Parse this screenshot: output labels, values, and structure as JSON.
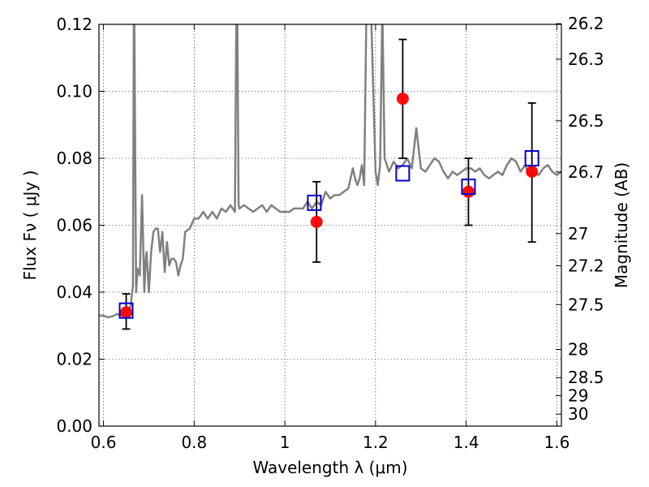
{
  "chart_data": {
    "type": "scatter",
    "title": "",
    "xlabel": "Wavelength  λ (μm)",
    "ylabel": "Flux  Fν ( μJy )",
    "y2label": "Magnitude (AB)",
    "xlim": [
      0.59,
      1.61
    ],
    "ylim": [
      0.0,
      0.12
    ],
    "grid": true,
    "x_ticks": [
      0.6,
      0.8,
      1.0,
      1.2,
      1.4,
      1.6
    ],
    "x_tick_labels": [
      "0.6",
      "0.8",
      "1",
      "1.2",
      "1.4",
      "1.6"
    ],
    "y_ticks": [
      0.0,
      0.02,
      0.04,
      0.06,
      0.08,
      0.1,
      0.12
    ],
    "y_tick_labels": [
      "0.00",
      "0.02",
      "0.04",
      "0.06",
      "0.08",
      "0.10",
      "0.12"
    ],
    "y2_ticks": [
      {
        "label": "26.2",
        "flux": 0.1202
      },
      {
        "label": "26.3",
        "flux": 0.1096
      },
      {
        "label": "26.5",
        "flux": 0.0912
      },
      {
        "label": "26.7",
        "flux": 0.0759
      },
      {
        "label": "27",
        "flux": 0.0575
      },
      {
        "label": "27.2",
        "flux": 0.0479
      },
      {
        "label": "27.5",
        "flux": 0.0363
      },
      {
        "label": "28",
        "flux": 0.0229
      },
      {
        "label": "28.5",
        "flux": 0.0145
      },
      {
        "label": "29",
        "flux": 0.0091
      },
      {
        "label": "30",
        "flux": 0.0036
      }
    ],
    "series": [
      {
        "kind": "model-spectrum",
        "color": "#808080",
        "x": [
          0.59,
          0.6,
          0.61,
          0.62,
          0.63,
          0.64,
          0.65,
          0.655,
          0.66,
          0.665,
          0.667,
          0.668,
          0.672,
          0.675,
          0.68,
          0.685,
          0.69,
          0.693,
          0.695,
          0.7,
          0.705,
          0.71,
          0.715,
          0.72,
          0.725,
          0.73,
          0.735,
          0.74,
          0.745,
          0.75,
          0.755,
          0.76,
          0.765,
          0.77,
          0.775,
          0.78,
          0.79,
          0.8,
          0.81,
          0.82,
          0.83,
          0.84,
          0.85,
          0.86,
          0.87,
          0.88,
          0.89,
          0.893,
          0.895,
          0.898,
          0.9,
          0.91,
          0.92,
          0.93,
          0.94,
          0.95,
          0.96,
          0.97,
          0.98,
          0.99,
          1.0,
          1.01,
          1.02,
          1.03,
          1.04,
          1.05,
          1.06,
          1.07,
          1.08,
          1.09,
          1.1,
          1.11,
          1.12,
          1.13,
          1.14,
          1.15,
          1.155,
          1.16,
          1.165,
          1.17,
          1.175,
          1.18,
          1.19,
          1.2,
          1.205,
          1.21,
          1.215,
          1.22,
          1.23,
          1.24,
          1.25,
          1.26,
          1.27,
          1.28,
          1.29,
          1.3,
          1.31,
          1.32,
          1.33,
          1.34,
          1.35,
          1.36,
          1.37,
          1.38,
          1.39,
          1.4,
          1.41,
          1.42,
          1.43,
          1.44,
          1.45,
          1.46,
          1.47,
          1.48,
          1.49,
          1.5,
          1.51,
          1.52,
          1.53,
          1.54,
          1.55,
          1.56,
          1.57,
          1.58,
          1.59,
          1.6,
          1.61
        ],
        "y": [
          0.033,
          0.033,
          0.0325,
          0.0328,
          0.0335,
          0.033,
          0.035,
          0.034,
          0.036,
          0.042,
          0.125,
          0.122,
          0.04,
          0.047,
          0.045,
          0.069,
          0.04,
          0.05,
          0.052,
          0.04,
          0.052,
          0.058,
          0.059,
          0.059,
          0.052,
          0.058,
          0.046,
          0.055,
          0.048,
          0.05,
          0.05,
          0.049,
          0.045,
          0.048,
          0.05,
          0.058,
          0.059,
          0.062,
          0.062,
          0.064,
          0.062,
          0.064,
          0.062,
          0.065,
          0.064,
          0.066,
          0.064,
          0.122,
          0.128,
          0.066,
          0.065,
          0.066,
          0.065,
          0.064,
          0.065,
          0.066,
          0.064,
          0.066,
          0.065,
          0.064,
          0.064,
          0.064,
          0.065,
          0.065,
          0.065,
          0.067,
          0.065,
          0.067,
          0.066,
          0.07,
          0.068,
          0.069,
          0.069,
          0.07,
          0.071,
          0.077,
          0.074,
          0.072,
          0.074,
          0.078,
          0.072,
          0.125,
          0.125,
          0.076,
          0.072,
          0.078,
          0.125,
          0.08,
          0.076,
          0.079,
          0.077,
          0.078,
          0.08,
          0.077,
          0.089,
          0.077,
          0.076,
          0.078,
          0.08,
          0.079,
          0.076,
          0.074,
          0.076,
          0.075,
          0.076,
          0.077,
          0.077,
          0.076,
          0.077,
          0.075,
          0.074,
          0.075,
          0.076,
          0.075,
          0.078,
          0.08,
          0.079,
          0.076,
          0.078,
          0.075,
          0.076,
          0.075,
          0.077,
          0.078,
          0.076,
          0.075,
          0.076
        ]
      },
      {
        "kind": "model-photometry",
        "marker": "open-square",
        "color": "#0000cc",
        "x": [
          0.65,
          1.065,
          1.26,
          1.405,
          1.545
        ],
        "y": [
          0.0345,
          0.0667,
          0.0755,
          0.0715,
          0.08
        ]
      },
      {
        "kind": "observed-photometry",
        "marker": "filled-circle",
        "color": "#ff0000",
        "x": [
          0.65,
          1.07,
          1.26,
          1.405,
          1.545
        ],
        "y": [
          0.034,
          0.061,
          0.0978,
          0.07,
          0.076
        ],
        "yerr_low": [
          0.029,
          0.049,
          0.08,
          0.06,
          0.055
        ],
        "yerr_high": [
          0.0395,
          0.073,
          0.1155,
          0.08,
          0.0965
        ]
      }
    ]
  }
}
